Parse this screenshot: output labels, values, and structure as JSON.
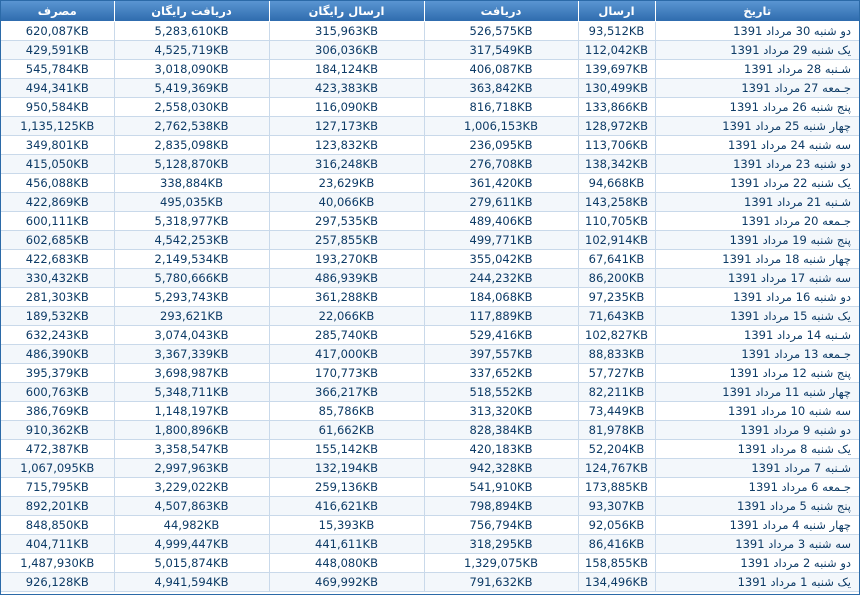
{
  "table": {
    "headers": {
      "date": "تاریخ",
      "send": "ارسال",
      "receive": "دریافت",
      "free_send": "ارسال رایگان",
      "free_receive": "دریافت رایگان",
      "usage": "مصرف"
    },
    "rows": [
      {
        "date": "دو شنبه 30 مرداد 1391",
        "send": "93,512KB",
        "receive": "526,575KB",
        "free_send": "315,963KB",
        "free_receive": "5,283,610KB",
        "usage": "620,087KB"
      },
      {
        "date": "یک شنبه 29 مرداد 1391",
        "send": "112,042KB",
        "receive": "317,549KB",
        "free_send": "306,036KB",
        "free_receive": "4,525,719KB",
        "usage": "429,591KB"
      },
      {
        "date": "شـنبه 28 مرداد 1391",
        "send": "139,697KB",
        "receive": "406,087KB",
        "free_send": "184,124KB",
        "free_receive": "3,018,090KB",
        "usage": "545,784KB"
      },
      {
        "date": "جـمعه 27 مرداد 1391",
        "send": "130,499KB",
        "receive": "363,842KB",
        "free_send": "423,383KB",
        "free_receive": "5,419,369KB",
        "usage": "494,341KB"
      },
      {
        "date": "پنج شنبه 26 مرداد 1391",
        "send": "133,866KB",
        "receive": "816,718KB",
        "free_send": "116,090KB",
        "free_receive": "2,558,030KB",
        "usage": "950,584KB"
      },
      {
        "date": "چهار شنبه 25 مرداد 1391",
        "send": "128,972KB",
        "receive": "1,006,153KB",
        "free_send": "127,173KB",
        "free_receive": "2,762,538KB",
        "usage": "1,135,125KB"
      },
      {
        "date": "سه شنبه 24 مرداد 1391",
        "send": "113,706KB",
        "receive": "236,095KB",
        "free_send": "123,832KB",
        "free_receive": "2,835,098KB",
        "usage": "349,801KB"
      },
      {
        "date": "دو شنبه 23 مرداد 1391",
        "send": "138,342KB",
        "receive": "276,708KB",
        "free_send": "316,248KB",
        "free_receive": "5,128,870KB",
        "usage": "415,050KB"
      },
      {
        "date": "یک شنبه 22 مرداد 1391",
        "send": "94,668KB",
        "receive": "361,420KB",
        "free_send": "23,629KB",
        "free_receive": "338,884KB",
        "usage": "456,088KB"
      },
      {
        "date": "شـنبه 21 مرداد 1391",
        "send": "143,258KB",
        "receive": "279,611KB",
        "free_send": "40,066KB",
        "free_receive": "495,035KB",
        "usage": "422,869KB"
      },
      {
        "date": "جـمعه 20 مرداد 1391",
        "send": "110,705KB",
        "receive": "489,406KB",
        "free_send": "297,535KB",
        "free_receive": "5,318,977KB",
        "usage": "600,111KB"
      },
      {
        "date": "پنج شنبه 19 مرداد 1391",
        "send": "102,914KB",
        "receive": "499,771KB",
        "free_send": "257,855KB",
        "free_receive": "4,542,253KB",
        "usage": "602,685KB"
      },
      {
        "date": "چهار شنبه 18 مرداد 1391",
        "send": "67,641KB",
        "receive": "355,042KB",
        "free_send": "193,270KB",
        "free_receive": "2,149,534KB",
        "usage": "422,683KB"
      },
      {
        "date": "سه شنبه 17 مرداد 1391",
        "send": "86,200KB",
        "receive": "244,232KB",
        "free_send": "486,939KB",
        "free_receive": "5,780,666KB",
        "usage": "330,432KB"
      },
      {
        "date": "دو شنبه 16 مرداد 1391",
        "send": "97,235KB",
        "receive": "184,068KB",
        "free_send": "361,288KB",
        "free_receive": "5,293,743KB",
        "usage": "281,303KB"
      },
      {
        "date": "یک شنبه 15 مرداد 1391",
        "send": "71,643KB",
        "receive": "117,889KB",
        "free_send": "22,066KB",
        "free_receive": "293,621KB",
        "usage": "189,532KB"
      },
      {
        "date": "شـنبه 14 مرداد 1391",
        "send": "102,827KB",
        "receive": "529,416KB",
        "free_send": "285,740KB",
        "free_receive": "3,074,043KB",
        "usage": "632,243KB"
      },
      {
        "date": "جـمعه 13 مرداد 1391",
        "send": "88,833KB",
        "receive": "397,557KB",
        "free_send": "417,000KB",
        "free_receive": "3,367,339KB",
        "usage": "486,390KB"
      },
      {
        "date": "پنج شنبه 12 مرداد 1391",
        "send": "57,727KB",
        "receive": "337,652KB",
        "free_send": "170,773KB",
        "free_receive": "3,698,987KB",
        "usage": "395,379KB"
      },
      {
        "date": "چهار شنبه 11 مرداد 1391",
        "send": "82,211KB",
        "receive": "518,552KB",
        "free_send": "366,217KB",
        "free_receive": "5,348,711KB",
        "usage": "600,763KB"
      },
      {
        "date": "سه شنبه 10 مرداد 1391",
        "send": "73,449KB",
        "receive": "313,320KB",
        "free_send": "85,786KB",
        "free_receive": "1,148,197KB",
        "usage": "386,769KB"
      },
      {
        "date": "دو شنبه 9 مرداد 1391",
        "send": "81,978KB",
        "receive": "828,384KB",
        "free_send": "61,662KB",
        "free_receive": "1,800,896KB",
        "usage": "910,362KB"
      },
      {
        "date": "یک شنبه 8 مرداد 1391",
        "send": "52,204KB",
        "receive": "420,183KB",
        "free_send": "155,142KB",
        "free_receive": "3,358,547KB",
        "usage": "472,387KB"
      },
      {
        "date": "شـنبه 7 مرداد 1391",
        "send": "124,767KB",
        "receive": "942,328KB",
        "free_send": "132,194KB",
        "free_receive": "2,997,963KB",
        "usage": "1,067,095KB"
      },
      {
        "date": "جـمعه 6 مرداد 1391",
        "send": "173,885KB",
        "receive": "541,910KB",
        "free_send": "259,136KB",
        "free_receive": "3,229,022KB",
        "usage": "715,795KB"
      },
      {
        "date": "پنج شنبه 5 مرداد 1391",
        "send": "93,307KB",
        "receive": "798,894KB",
        "free_send": "416,621KB",
        "free_receive": "4,507,863KB",
        "usage": "892,201KB"
      },
      {
        "date": "چهار شنبه 4 مرداد 1391",
        "send": "92,056KB",
        "receive": "756,794KB",
        "free_send": "15,393KB",
        "free_receive": "44,982KB",
        "usage": "848,850KB"
      },
      {
        "date": "سه شنبه 3 مرداد 1391",
        "send": "86,416KB",
        "receive": "318,295KB",
        "free_send": "441,611KB",
        "free_receive": "4,999,447KB",
        "usage": "404,711KB"
      },
      {
        "date": "دو شنبه 2 مرداد 1391",
        "send": "158,855KB",
        "receive": "1,329,075KB",
        "free_send": "448,080KB",
        "free_receive": "5,015,874KB",
        "usage": "1,487,930KB"
      },
      {
        "date": "یک شنبه 1 مرداد 1391",
        "send": "134,496KB",
        "receive": "791,632KB",
        "free_send": "469,992KB",
        "free_receive": "4,941,594KB",
        "usage": "926,128KB"
      }
    ]
  }
}
